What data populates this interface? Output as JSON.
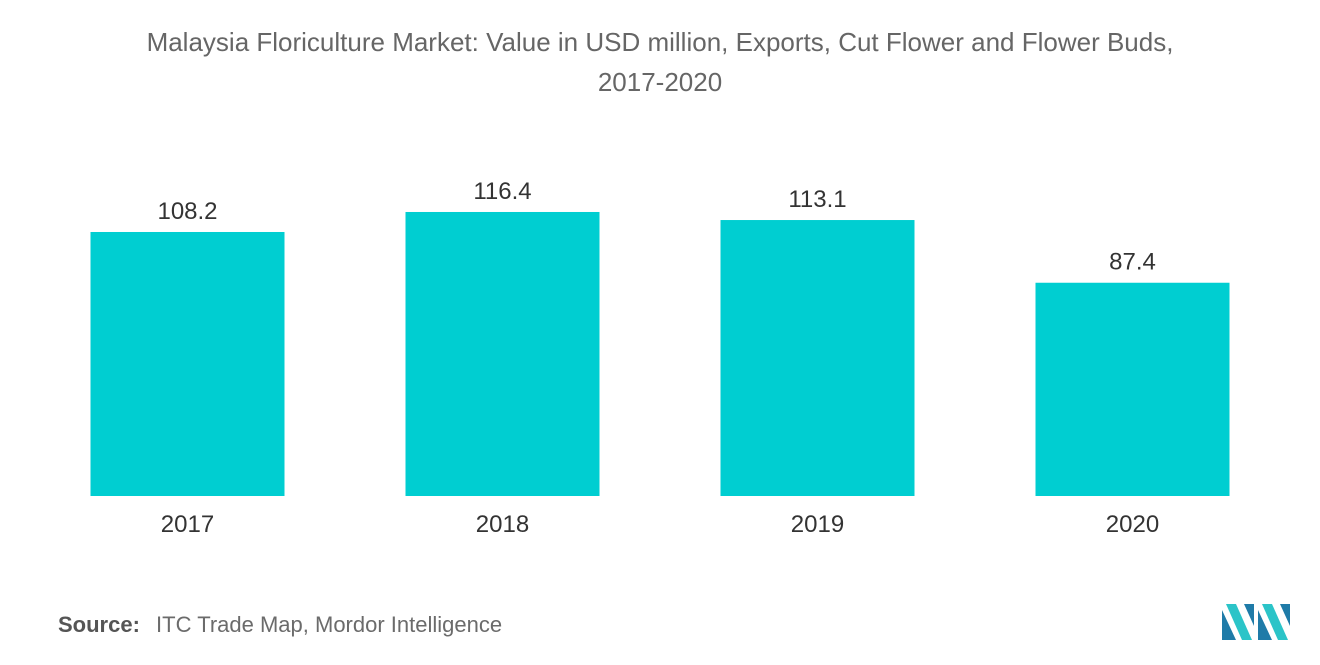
{
  "chart_data": {
    "type": "bar",
    "title": "Malaysia Floriculture Market: Value in USD million, Exports, Cut Flower and Flower Buds,",
    "title_line2": "2017-2020",
    "categories": [
      "2017",
      "2018",
      "2019",
      "2020"
    ],
    "values": [
      108.2,
      116.4,
      113.1,
      87.4
    ],
    "value_labels": [
      "108.2",
      "116.4",
      "113.1",
      "87.4"
    ],
    "xlabel": "",
    "ylabel": "",
    "ylim": [
      0,
      130
    ],
    "grid": false,
    "legend": "none",
    "bar_color": "#00CED1"
  },
  "source": {
    "label": "Source:",
    "text": "ITC Trade Map, Mordor Intelligence"
  },
  "logo": {
    "icon": "mordor-intelligence-logo-icon",
    "colors": [
      "#1F7BA8",
      "#2BC4C8"
    ]
  }
}
